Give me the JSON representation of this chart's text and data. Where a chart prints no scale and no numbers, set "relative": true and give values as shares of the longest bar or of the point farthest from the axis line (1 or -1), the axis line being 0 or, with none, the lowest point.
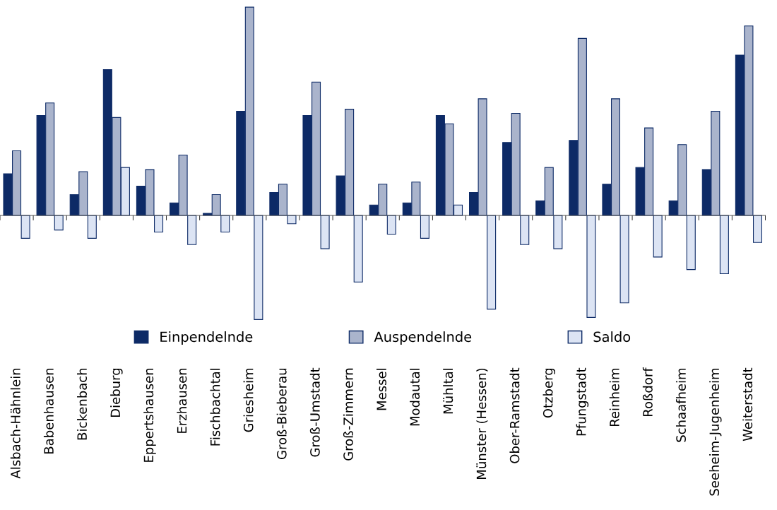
{
  "chart_data": {
    "type": "bar",
    "relative": true,
    "legend": "bottom",
    "grid": false,
    "categories": [
      "Alsbach-Hähnlein",
      "Babenhausen",
      "Bickenbach",
      "Dieburg",
      "Eppertshausen",
      "Erzhausen",
      "Fischbachtal",
      "Griesheim",
      "Groß-Bieberau",
      "Groß-Umstadt",
      "Groß-Zimmern",
      "Messel",
      "Modautal",
      "Mühltal",
      "Münster (Hessen)",
      "Ober-Ramstadt",
      "Otzberg",
      "Pfungstadt",
      "Reinheim",
      "Roßdorf",
      "Schaafheim",
      "Seeheim-Jugenheim",
      "Weiterstadt"
    ],
    "series": [
      {
        "name": "Einpendelnde",
        "color": "#0d2a66",
        "values": [
          0.2,
          0.48,
          0.1,
          0.7,
          0.14,
          0.06,
          0.01,
          0.5,
          0.11,
          0.48,
          0.19,
          0.05,
          0.06,
          0.48,
          0.11,
          0.35,
          0.07,
          0.36,
          0.15,
          0.23,
          0.07,
          0.22,
          0.77
        ]
      },
      {
        "name": "Auspendelnde",
        "color": "#aab4cc",
        "values": [
          0.31,
          0.54,
          0.21,
          0.47,
          0.22,
          0.29,
          0.1,
          1,
          0.15,
          0.64,
          0.51,
          0.15,
          0.16,
          0.44,
          0.56,
          0.49,
          0.23,
          0.85,
          0.56,
          0.42,
          0.34,
          0.5,
          0.91
        ]
      },
      {
        "name": "Saldo",
        "color": "#dce4f4",
        "values": [
          -0.11,
          -0.07,
          -0.11,
          0.23,
          -0.08,
          -0.14,
          -0.08,
          -0.5,
          -0.04,
          -0.16,
          -0.32,
          -0.09,
          -0.11,
          0.05,
          -0.45,
          -0.14,
          -0.16,
          -0.49,
          -0.42,
          -0.2,
          -0.26,
          -0.28,
          -0.13
        ]
      }
    ]
  }
}
